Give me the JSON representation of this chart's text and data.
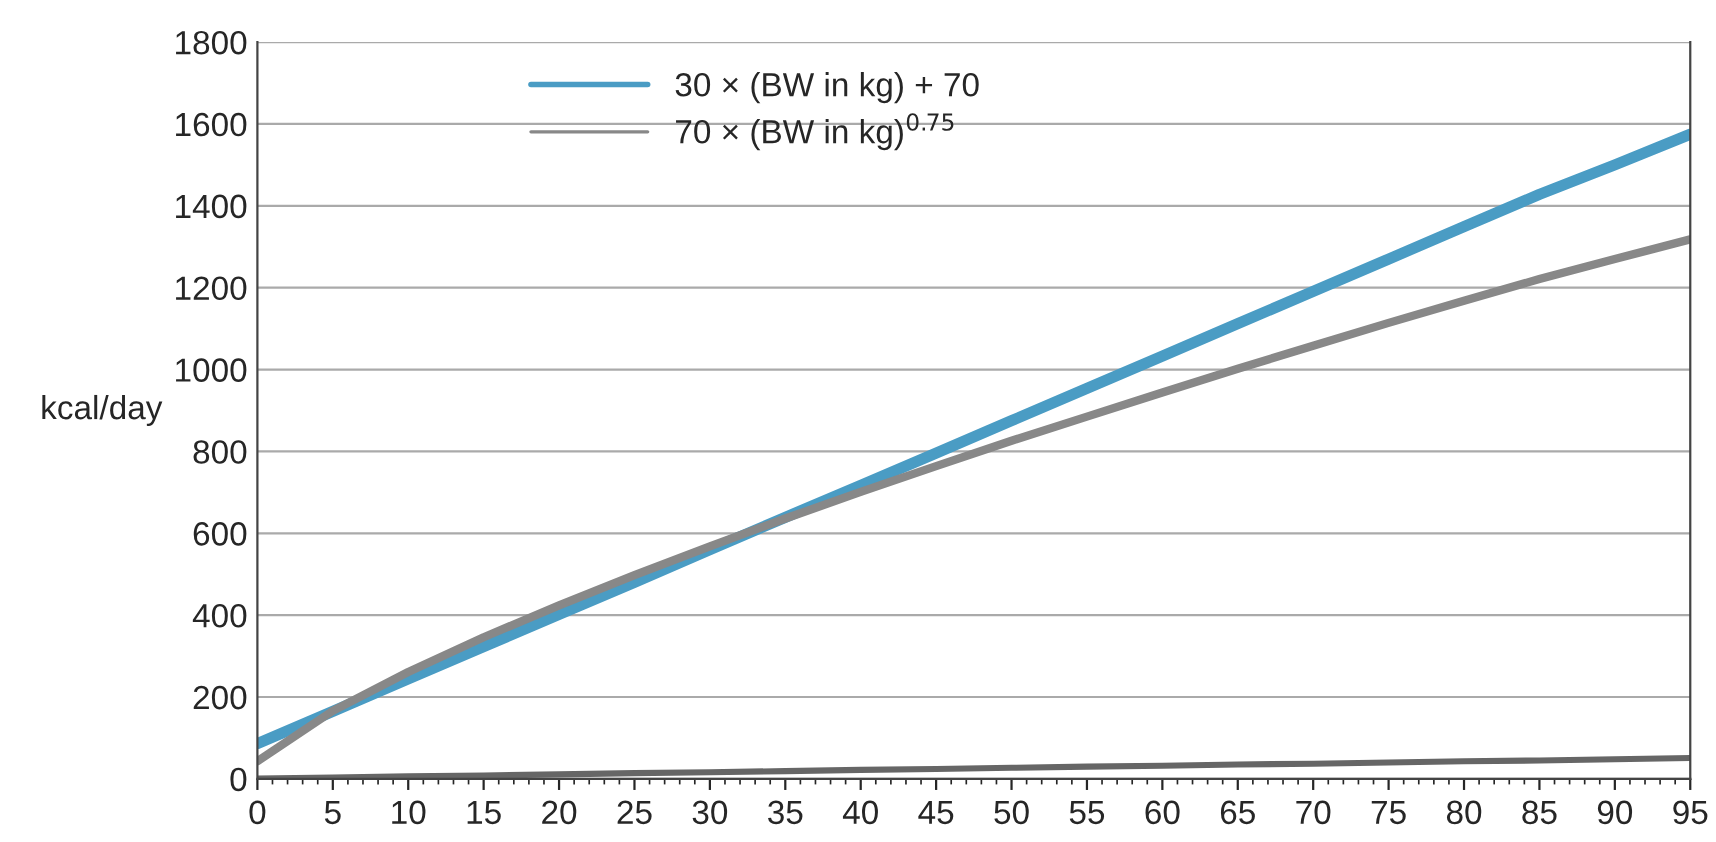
{
  "chart_data": {
    "type": "line",
    "ylabel": "kcal/day",
    "x": [
      0,
      5,
      10,
      15,
      20,
      25,
      30,
      35,
      40,
      45,
      50,
      55,
      60,
      65,
      70,
      75,
      80,
      85,
      90,
      95
    ],
    "series": [
      {
        "name": "30 × (BW in kg) + 70",
        "color": "#4a9cc4",
        "values": [
          86,
          165,
          244,
          323,
          402,
          480,
          560,
          639,
          717,
          796,
          875,
          954,
          1033,
          1112,
          1191,
          1270,
          1349,
          1428,
          1500,
          1575
        ]
      },
      {
        "name": "70 × (BW in kg)$^{0.75}$",
        "color": "#888888",
        "values": [
          43,
          166,
          261,
          346,
          424,
          498,
          568,
          636,
          701,
          764,
          826,
          885,
          944,
          1002,
          1058,
          1114,
          1168,
          1221,
          1270,
          1318
        ]
      },
      {
        "color": "#666666",
        "values": [
          1,
          3,
          6,
          8,
          11,
          14,
          16,
          19,
          22,
          24,
          27,
          30,
          32,
          35,
          37,
          40,
          43,
          45,
          48,
          51
        ]
      }
    ],
    "xlim": [
      0,
      95
    ],
    "xticks": [
      0,
      5,
      10,
      15,
      20,
      25,
      30,
      35,
      40,
      45,
      50,
      55,
      60,
      65,
      70,
      75,
      80,
      85,
      90,
      95
    ],
    "ylim": [
      0,
      1800
    ],
    "yticks": [
      0,
      200,
      400,
      600,
      800,
      1000,
      1200,
      1400,
      1600,
      1800
    ],
    "grid": "y",
    "legend": "top left",
    "marker": "none",
    "line_style": "solid"
  }
}
